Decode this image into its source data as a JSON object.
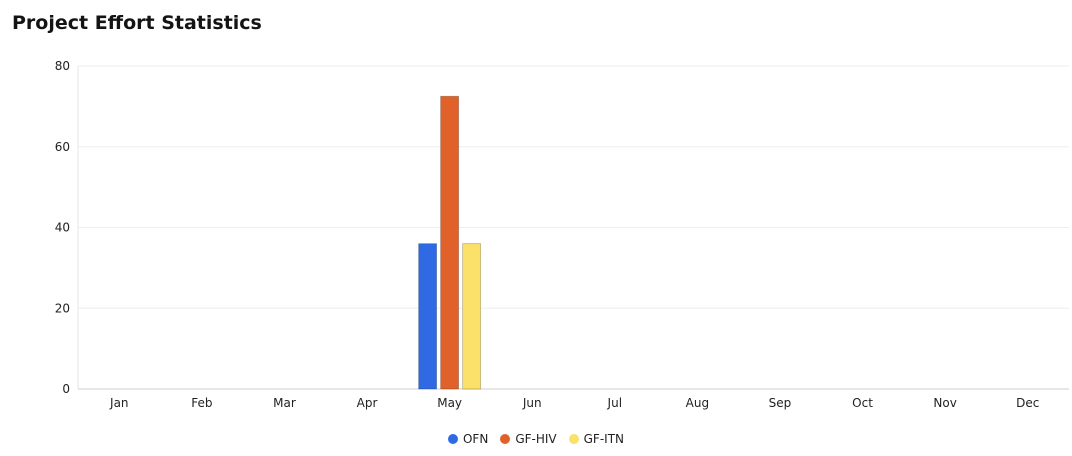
{
  "page": {
    "title": "Project Effort Statistics"
  },
  "chart_data": {
    "type": "bar",
    "title": "",
    "xlabel": "",
    "ylabel": "",
    "ylim": [
      0,
      80
    ],
    "yticks": [
      0,
      20,
      40,
      60,
      80
    ],
    "categories": [
      "Jan",
      "Feb",
      "Mar",
      "Apr",
      "May",
      "Jun",
      "Jul",
      "Aug",
      "Sep",
      "Oct",
      "Nov",
      "Dec"
    ],
    "series": [
      {
        "name": "OFN",
        "color": "#2f6ae4",
        "values": [
          0,
          0,
          0,
          0,
          36,
          0,
          0,
          0,
          0,
          0,
          0,
          0
        ]
      },
      {
        "name": "GF-HIV",
        "color": "#e0622a",
        "values": [
          0,
          0,
          0,
          0,
          72.5,
          0,
          0,
          0,
          0,
          0,
          0,
          0
        ]
      },
      {
        "name": "GF-ITN",
        "color": "#fbe06a",
        "values": [
          0,
          0,
          0,
          0,
          36,
          0,
          0,
          0,
          0,
          0,
          0,
          0
        ]
      }
    ],
    "grid": true,
    "legend_position": "bottom-center"
  }
}
